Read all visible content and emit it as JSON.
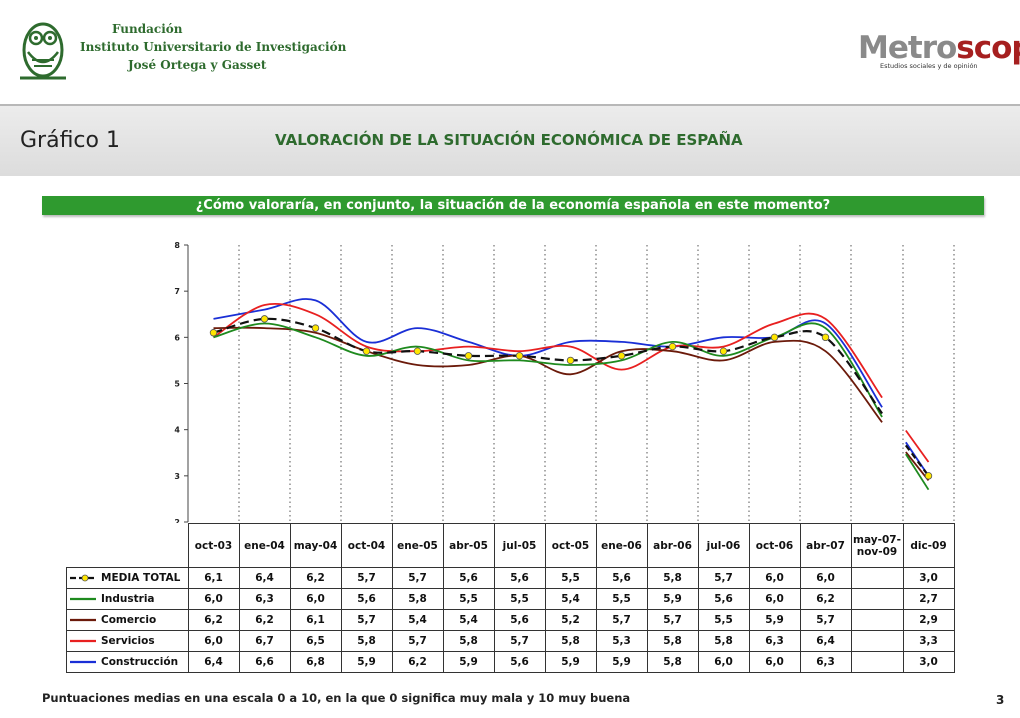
{
  "header": {
    "fundacion": [
      "Fundación",
      "Instituto Universitario de Investigación",
      "José Ortega y Gasset"
    ],
    "metro_main": "Metroscopia",
    "metro_sub": "Estudios sociales y de opinión"
  },
  "grafico_label": "Gráfico 1",
  "main_title": "VALORACIÓN DE LA SITUACIÓN ECONÓMICA DE ESPAÑA",
  "question": "¿Cómo valoraría, en conjunto, la situación de la economía española en este momento?",
  "footnote": "Puntuaciones medias en una escala 0 a 10, en la que 0 significa muy mala y 10 muy buena",
  "page_number": "3",
  "chart_data": {
    "type": "line",
    "title": "",
    "xlabel": "",
    "ylabel": "",
    "ylim": [
      2,
      8
    ],
    "yticks": [
      "2",
      "3",
      "4",
      "5",
      "6",
      "7",
      "8"
    ],
    "grid": "vertical dotted",
    "categories": [
      "oct-03",
      "ene-04",
      "may-04",
      "oct-04",
      "ene-05",
      "abr-05",
      "jul-05",
      "oct-05",
      "ene-06",
      "abr-06",
      "jul-06",
      "oct-06",
      "abr-07",
      "may-07-\nnov-09",
      "dic-09"
    ],
    "series": [
      {
        "name": "MEDIA TOTAL",
        "color": "#111111",
        "dashed": true,
        "marker": "yellow-dot",
        "values": [
          6.1,
          6.4,
          6.2,
          5.7,
          5.7,
          5.6,
          5.6,
          5.5,
          5.6,
          5.8,
          5.7,
          6.0,
          6.0,
          null,
          3.0
        ]
      },
      {
        "name": "Industria",
        "color": "#1e8a1e",
        "values": [
          6.0,
          6.3,
          6.0,
          5.6,
          5.8,
          5.5,
          5.5,
          5.4,
          5.5,
          5.9,
          5.6,
          6.0,
          6.2,
          null,
          2.7
        ]
      },
      {
        "name": "Comercio",
        "color": "#6b1a0a",
        "values": [
          6.2,
          6.2,
          6.1,
          5.7,
          5.4,
          5.4,
          5.6,
          5.2,
          5.7,
          5.7,
          5.5,
          5.9,
          5.7,
          null,
          2.9
        ]
      },
      {
        "name": "Servicios",
        "color": "#e82020",
        "values": [
          6.0,
          6.7,
          6.5,
          5.8,
          5.7,
          5.8,
          5.7,
          5.8,
          5.3,
          5.8,
          5.8,
          6.3,
          6.4,
          null,
          3.3
        ]
      },
      {
        "name": "Construcción",
        "color": "#1a2fd6",
        "values": [
          6.4,
          6.6,
          6.8,
          5.9,
          6.2,
          5.9,
          5.6,
          5.9,
          5.9,
          5.8,
          6.0,
          6.0,
          6.3,
          null,
          3.0
        ]
      }
    ]
  }
}
